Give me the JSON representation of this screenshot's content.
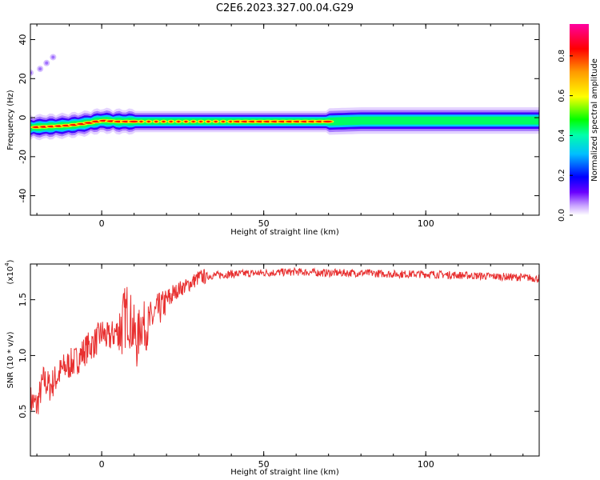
{
  "title": "C2E6.2023.327.00.04.G29",
  "colorbar": {
    "label": "Normalized spectral amplitude",
    "ticks": [
      "0.0",
      "0.2",
      "0.4",
      "0.6",
      "0.8"
    ],
    "range": [
      0,
      0.96
    ]
  },
  "chart_data": [
    {
      "type": "heatmap",
      "xlabel": "Height of straight line (km)",
      "ylabel": "Frequency (Hz)",
      "xlim": [
        -22,
        135
      ],
      "ylim": [
        -50,
        48
      ],
      "x_ticks": [
        "0",
        "50",
        "100"
      ],
      "x_tick_values": [
        0,
        50,
        100
      ],
      "y_ticks": [
        "40",
        "20",
        "0",
        "-20",
        "-40"
      ],
      "y_tick_values": [
        40,
        20,
        0,
        -20,
        -40
      ],
      "ridge": {
        "x": [
          -22,
          -15,
          -10,
          -5,
          0,
          5,
          10,
          20,
          30,
          40,
          50,
          60,
          70,
          80,
          90,
          100,
          110,
          120,
          135
        ],
        "frequency": [
          -5,
          -4.5,
          -4,
          -3,
          -1.5,
          -2,
          -2,
          -2,
          -2,
          -2,
          -2,
          -2,
          -2,
          -1.5,
          -1.5,
          -1.5,
          -1.5,
          -1.5,
          -1.5
        ]
      },
      "scatter_points": [
        {
          "x": -22,
          "y": 23
        },
        {
          "x": -19,
          "y": 25
        },
        {
          "x": -17,
          "y": 28
        },
        {
          "x": -15,
          "y": 31
        }
      ]
    },
    {
      "type": "line",
      "xlabel": "Height of straight line (km)",
      "ylabel": "SNR (10 * v/v)",
      "y_multiplier": "(x10",
      "y_multiplier_exp": "4",
      "y_multiplier_close": ")",
      "xlim": [
        -22,
        135
      ],
      "ylim": [
        0.1,
        1.82
      ],
      "x_ticks": [
        "0",
        "50",
        "100"
      ],
      "x_tick_values": [
        0,
        50,
        100
      ],
      "y_ticks": [
        "0.5",
        "1.0",
        "1.5"
      ],
      "y_tick_values": [
        0.5,
        1.0,
        1.5
      ],
      "series": [
        {
          "color": "#e83030",
          "x": [
            -22,
            -20,
            -18,
            -16,
            -14,
            -12,
            -10,
            -8,
            -6,
            -4,
            -2,
            0,
            2,
            4,
            6,
            8,
            9,
            10,
            11,
            12,
            14,
            16,
            18,
            20,
            22,
            24,
            26,
            28,
            30,
            35,
            40,
            50,
            60,
            70,
            80,
            90,
            100,
            110,
            120,
            130,
            135
          ],
          "values": [
            0.6,
            0.55,
            0.78,
            0.72,
            0.8,
            0.88,
            0.92,
            0.95,
            1.02,
            1.08,
            1.12,
            1.2,
            1.15,
            1.2,
            1.25,
            1.4,
            1.3,
            1.2,
            1.1,
            1.3,
            1.25,
            1.35,
            1.42,
            1.48,
            1.55,
            1.6,
            1.62,
            1.66,
            1.7,
            1.72,
            1.73,
            1.74,
            1.75,
            1.74,
            1.74,
            1.73,
            1.73,
            1.72,
            1.71,
            1.7,
            1.69
          ]
        }
      ]
    }
  ]
}
